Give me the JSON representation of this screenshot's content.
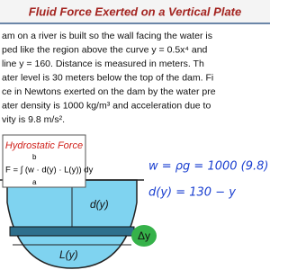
{
  "header": {
    "title": "Fluid Force Exerted on a Vertical Plate"
  },
  "problem": {
    "lines": [
      "am on a river is built so the wall facing the water is",
      "ped like the region above the curve y = 0.5x⁴ and",
      "line y = 160. Distance is measured in meters. Th",
      "ater level is 30 meters below the top of the dam. Fi",
      "ce in Newtons exerted on the dam by the water pre",
      "ater density is 1000 kg/m³ and acceleration due to",
      "vity is 9.8 m/s²."
    ]
  },
  "formula_box": {
    "title": "Hydrostatic Force",
    "lower": "a",
    "upper": "b",
    "formula": "F = ∫ (w · d(y) · L(y)) dy"
  },
  "work": {
    "lines": [
      "w = ρg = 1000 (9.8) = 98",
      "d(y) = 130 − y"
    ]
  },
  "diagram": {
    "labels": {
      "depth": "d(y)",
      "strip": "Δy",
      "length": "L(y)"
    }
  }
}
